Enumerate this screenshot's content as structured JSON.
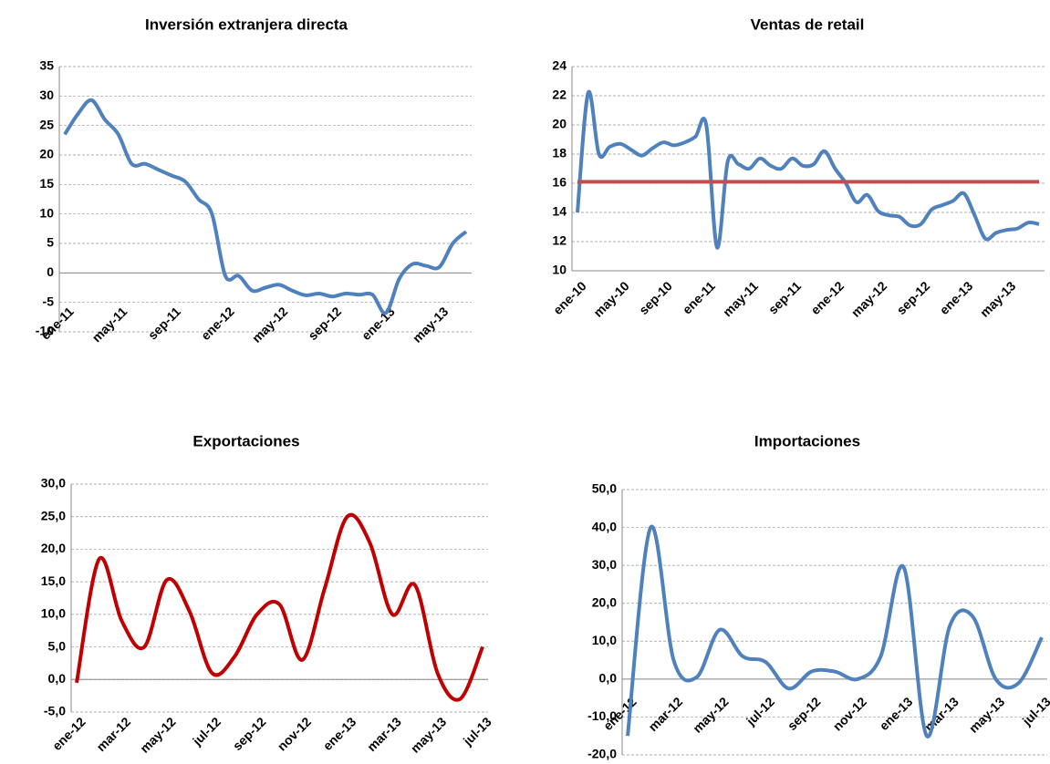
{
  "chart_data": [
    {
      "type": "line",
      "title": "Inversión extranjera directa",
      "categories": [
        "ene-11",
        null,
        null,
        null,
        "may-11",
        null,
        null,
        null,
        "sep-11",
        null,
        null,
        null,
        "ene-12",
        null,
        null,
        null,
        "may-12",
        null,
        null,
        null,
        "sep-12",
        null,
        null,
        null,
        "ene-13",
        null,
        null,
        null,
        "may-13",
        null,
        null
      ],
      "series": [
        {
          "color": "#4f81bd",
          "values": [
            23.5,
            27,
            29.3,
            26,
            23.5,
            18.5,
            18.5,
            17.5,
            16.5,
            15.5,
            12.5,
            10,
            -0.5,
            -0.5,
            -3,
            -2.5,
            -2,
            -3,
            -3.8,
            -3.5,
            -4,
            -3.5,
            -3.7,
            -3.7,
            -6.8,
            -1,
            1.5,
            1.2,
            1,
            5,
            7
          ]
        }
      ],
      "ylim": [
        -10,
        35
      ],
      "yticks": [
        -10,
        -5,
        0,
        5,
        10,
        15,
        20,
        25,
        30,
        35
      ],
      "grid": true,
      "negative_tick_color": "#c00000"
    },
    {
      "type": "line",
      "title": "Ventas de retail",
      "categories": [
        "ene-10",
        null,
        null,
        null,
        "may-10",
        null,
        null,
        null,
        "sep-10",
        null,
        null,
        null,
        "ene-11",
        null,
        null,
        null,
        "may-11",
        null,
        null,
        null,
        "sep-11",
        null,
        null,
        null,
        "ene-12",
        null,
        null,
        null,
        "may-12",
        null,
        null,
        null,
        "sep-12",
        null,
        null,
        null,
        "ene-13",
        null,
        null,
        null,
        "may-13",
        null,
        null,
        null
      ],
      "series": [
        {
          "color": "#4f81bd",
          "values": [
            14,
            22.2,
            18,
            18.5,
            18.7,
            18.3,
            17.9,
            18.4,
            18.8,
            18.6,
            18.8,
            19.2,
            20,
            11.6,
            17.5,
            17.3,
            17,
            17.7,
            17.2,
            17,
            17.7,
            17.2,
            17.3,
            18.2,
            17,
            16,
            14.7,
            15.2,
            14.1,
            13.8,
            13.7,
            13.1,
            13.2,
            14.2,
            14.5,
            14.8,
            15.3,
            13.8,
            12.2,
            12.6,
            12.8,
            12.9,
            13.3,
            13.2
          ]
        },
        {
          "color": "#c0504d",
          "values": [
            16.1,
            16.1,
            16.1,
            16.1,
            16.1,
            16.1,
            16.1,
            16.1,
            16.1,
            16.1,
            16.1,
            16.1,
            16.1,
            16.1,
            16.1,
            16.1,
            16.1,
            16.1,
            16.1,
            16.1,
            16.1,
            16.1,
            16.1,
            16.1,
            16.1,
            16.1,
            16.1,
            16.1,
            16.1,
            16.1,
            16.1,
            16.1,
            16.1,
            16.1,
            16.1,
            16.1,
            16.1,
            16.1,
            16.1,
            16.1,
            16.1,
            16.1,
            16.1,
            16.1
          ]
        }
      ],
      "ylim": [
        10,
        24
      ],
      "yticks": [
        10,
        12,
        14,
        16,
        18,
        20,
        22,
        24
      ],
      "grid": true,
      "negative_tick_color": "#c00000"
    },
    {
      "type": "line",
      "title": "Exportaciones",
      "categories": [
        "ene-12",
        null,
        "mar-12",
        null,
        "may-12",
        null,
        "jul-12",
        null,
        "sep-12",
        null,
        "nov-12",
        null,
        "ene-13",
        null,
        "mar-13",
        null,
        "may-13",
        null,
        "jul-13"
      ],
      "series": [
        {
          "color": "#c00000",
          "values": [
            -0.5,
            18.5,
            9,
            5,
            15.3,
            10.5,
            1,
            3.5,
            10,
            11.5,
            3,
            14,
            25,
            21,
            10,
            14.5,
            1,
            -3,
            5
          ]
        }
      ],
      "ylim": [
        -5,
        30
      ],
      "yticks": [
        {
          "value": -5,
          "label": "-5,0"
        },
        {
          "value": 0,
          "label": "0,0"
        },
        {
          "value": 5,
          "label": "5,0"
        },
        {
          "value": 10,
          "label": "10,0"
        },
        {
          "value": 15,
          "label": "15,0"
        },
        {
          "value": 20,
          "label": "20,0"
        },
        {
          "value": 25,
          "label": "25,0"
        },
        {
          "value": 30,
          "label": "30,0"
        }
      ],
      "grid": true,
      "negative_tick_color": "#c00000"
    },
    {
      "type": "line",
      "title": "Importaciones",
      "categories": [
        "ene-12",
        null,
        "mar-12",
        null,
        "may-12",
        null,
        "jul-12",
        null,
        "sep-12",
        null,
        "nov-12",
        null,
        "ene-13",
        null,
        "mar-13",
        null,
        "may-13",
        null,
        "jul-13"
      ],
      "series": [
        {
          "color": "#4f81bd",
          "values": [
            -15,
            40,
            5,
            0.5,
            13,
            6,
            4.5,
            -2.5,
            2,
            2,
            0,
            6,
            29.5,
            -15,
            14,
            16.5,
            0,
            -1,
            11
          ]
        }
      ],
      "ylim": [
        -20,
        50
      ],
      "yticks": [
        {
          "value": -20,
          "label": "-20,0"
        },
        {
          "value": -10,
          "label": "-10,0"
        },
        {
          "value": 0,
          "label": "0,0"
        },
        {
          "value": 10,
          "label": "10,0"
        },
        {
          "value": 20,
          "label": "20,0"
        },
        {
          "value": 30,
          "label": "30,0"
        },
        {
          "value": 40,
          "label": "40,0"
        },
        {
          "value": 50,
          "label": "50,0"
        }
      ],
      "grid": true,
      "negative_tick_color": "#c00000"
    }
  ]
}
